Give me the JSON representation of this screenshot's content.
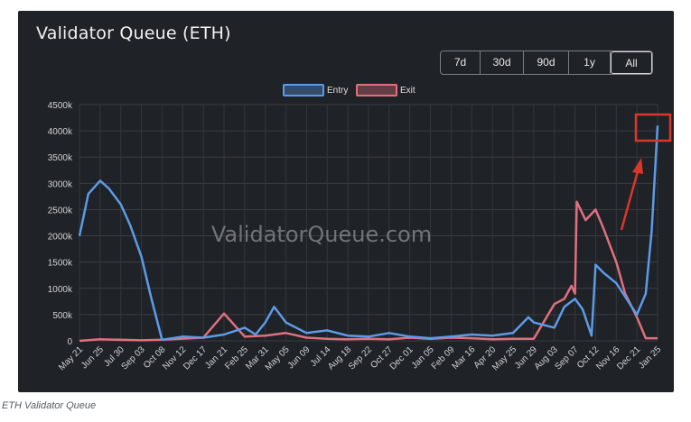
{
  "caption": "ETH Validator Queue",
  "range_buttons": [
    {
      "label": "7d",
      "active": false
    },
    {
      "label": "30d",
      "active": false
    },
    {
      "label": "90d",
      "active": false
    },
    {
      "label": "1y",
      "active": false
    },
    {
      "label": "All",
      "active": true
    }
  ],
  "watermark": "ValidatorQueue.com",
  "colors": {
    "entry": "#5c9be8",
    "exit": "#e07080",
    "annotation": "#d9372a"
  },
  "chart_data": {
    "type": "line",
    "title": "Validator Queue (ETH)",
    "legend": [
      "Entry",
      "Exit"
    ],
    "legend_position": "top-center",
    "grid": true,
    "ylim": [
      0,
      4500000
    ],
    "y_ticks": [
      "0",
      "500k",
      "1000k",
      "1500k",
      "2000k",
      "2500k",
      "3000k",
      "3500k",
      "4000k",
      "4500k"
    ],
    "x_ticks": [
      "May 21",
      "Jun 25",
      "Jul 30",
      "Sep 03",
      "Oct 08",
      "Nov 12",
      "Dec 17",
      "Jan 21",
      "Feb 25",
      "Mar 31",
      "May 05",
      "Jun 09",
      "Jul 14",
      "Aug 18",
      "Sep 22",
      "Oct 27",
      "Dec 01",
      "Jan 05",
      "Feb 09",
      "Mar 16",
      "Apr 20",
      "May 25",
      "Jun 29",
      "Aug 03",
      "Sep 07",
      "Oct 12",
      "Nov 16",
      "Dec 21",
      "Jan 25"
    ],
    "series": [
      {
        "name": "Entry",
        "x": [
          "May 21",
          "Jun 05",
          "Jun 25",
          "Jul 10",
          "Jul 30",
          "Aug 15",
          "Sep 03",
          "Sep 20",
          "Oct 08",
          "Nov 12",
          "Dec 17",
          "Jan 21",
          "Feb 25",
          "Mar 15",
          "Mar 31",
          "Apr 15",
          "May 05",
          "Jun 09",
          "Jul 14",
          "Aug 18",
          "Sep 22",
          "Oct 27",
          "Dec 01",
          "Jan 05",
          "Feb 09",
          "Mar 16",
          "Apr 20",
          "May 25",
          "Jun 20",
          "Jun 29",
          "Aug 03",
          "Aug 20",
          "Sep 07",
          "Sep 20",
          "Oct 05",
          "Oct 12",
          "Oct 25",
          "Nov 16",
          "Dec 21",
          "Jan 05",
          "Jan 15",
          "Jan 25"
        ],
        "values": [
          2000000,
          2800000,
          3050000,
          2900000,
          2600000,
          2200000,
          1600000,
          800000,
          20000,
          80000,
          60000,
          120000,
          250000,
          120000,
          350000,
          650000,
          350000,
          150000,
          200000,
          100000,
          80000,
          150000,
          80000,
          50000,
          80000,
          120000,
          100000,
          150000,
          450000,
          350000,
          250000,
          650000,
          800000,
          600000,
          100000,
          1450000,
          1300000,
          1100000,
          500000,
          900000,
          2100000,
          4100000
        ]
      },
      {
        "name": "Exit",
        "x": [
          "May 21",
          "Jun 25",
          "Sep 03",
          "Oct 08",
          "Dec 17",
          "Jan 21",
          "Feb 25",
          "Mar 31",
          "May 05",
          "Jun 09",
          "Jul 14",
          "Aug 18",
          "Sep 22",
          "Oct 27",
          "Dec 01",
          "Jan 05",
          "Feb 09",
          "Mar 16",
          "Apr 20",
          "May 25",
          "Jun 29",
          "Aug 03",
          "Aug 20",
          "Sep 01",
          "Sep 07",
          "Sep 10",
          "Sep 25",
          "Oct 12",
          "Oct 25",
          "Nov 16",
          "Dec 01",
          "Dec 21",
          "Jan 05",
          "Jan 25"
        ],
        "values": [
          0,
          30000,
          10000,
          20000,
          60000,
          520000,
          80000,
          100000,
          150000,
          60000,
          40000,
          30000,
          40000,
          30000,
          60000,
          40000,
          60000,
          50000,
          30000,
          40000,
          40000,
          700000,
          800000,
          1050000,
          900000,
          2650000,
          2300000,
          2500000,
          2150000,
          1500000,
          900000,
          450000,
          50000,
          50000
        ]
      }
    ],
    "annotations": [
      "arrow",
      "highlight-box"
    ]
  }
}
